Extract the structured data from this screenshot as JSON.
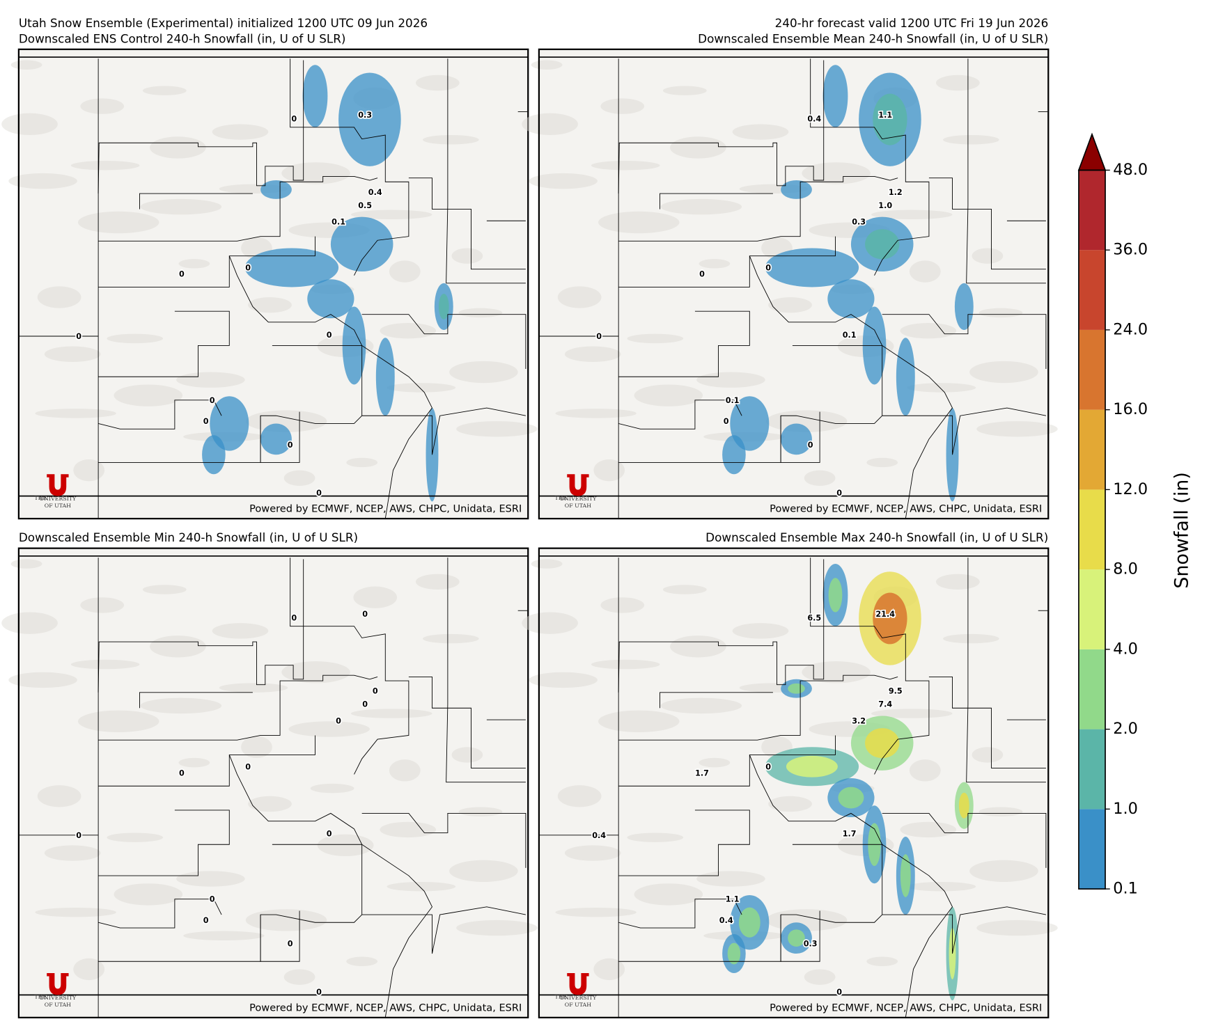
{
  "header": {
    "run_info": "Utah Snow Ensemble (Experimental) initialized 1200 UTC 09 Jun 2026",
    "valid_info": "240-hr forecast valid 1200 UTC Fri 19 Jun 2026"
  },
  "attribution": "Powered by ECMWF, NCEP, AWS, CHPC, Unidata, ESRI",
  "logo": {
    "the": "THE",
    "university": "UNIVERSITY",
    "of_utah": "OF UTAH"
  },
  "panels": [
    {
      "title": "Downscaled ENS Control 240-h Snowfall (in, U of U SLR)",
      "point_labels": [
        "0",
        "0.3",
        "0.4",
        "0.5",
        "0.1",
        "0",
        "0",
        "0",
        "0",
        "0",
        "0",
        "0",
        "0"
      ]
    },
    {
      "title": "Downscaled Ensemble Mean 240-h Snowfall (in, U of U SLR)",
      "point_labels": [
        "0.4",
        "1.1",
        "1.2",
        "1.0",
        "0.3",
        "0",
        "0",
        "0",
        "0.1",
        "0.1",
        "0",
        "0",
        "0"
      ]
    },
    {
      "title": "Downscaled Ensemble Min 240-h Snowfall (in, U of U SLR)",
      "point_labels": [
        "0",
        "0",
        "0",
        "0",
        "0",
        "0",
        "0",
        "0",
        "0",
        "0",
        "0",
        "0",
        "0"
      ]
    },
    {
      "title": "Downscaled Ensemble Max 240-h Snowfall (in, U of U SLR)",
      "point_labels": [
        "6.5",
        "21.4",
        "9.5",
        "7.4",
        "3.2",
        "1.7",
        "0",
        "0.4",
        "1.7",
        "1.1",
        "0.4",
        "0.3",
        "0"
      ]
    }
  ],
  "colorbar": {
    "label": "Snowfall (in)",
    "ticks": [
      0.1,
      {
        "value": 1,
        "label": "1.0"
      },
      {
        "value": 2,
        "label": "2.0"
      },
      {
        "value": 4,
        "label": "4.0"
      },
      {
        "value": 8,
        "label": "8.0"
      },
      {
        "value": 12,
        "label": "12.0"
      },
      {
        "value": 16,
        "label": "16.0"
      },
      {
        "value": 24,
        "label": "24.0"
      },
      {
        "value": 36,
        "label": "36.0"
      },
      {
        "value": 48,
        "label": "48.0"
      }
    ],
    "colors": [
      "#3a90c8",
      "#5bb5a8",
      "#91d98a",
      "#d8f27a",
      "#e8dc4a",
      "#e3a834",
      "#d8752f",
      "#c8452d",
      "#b0272d"
    ],
    "extend_color": "#8b0000"
  }
}
